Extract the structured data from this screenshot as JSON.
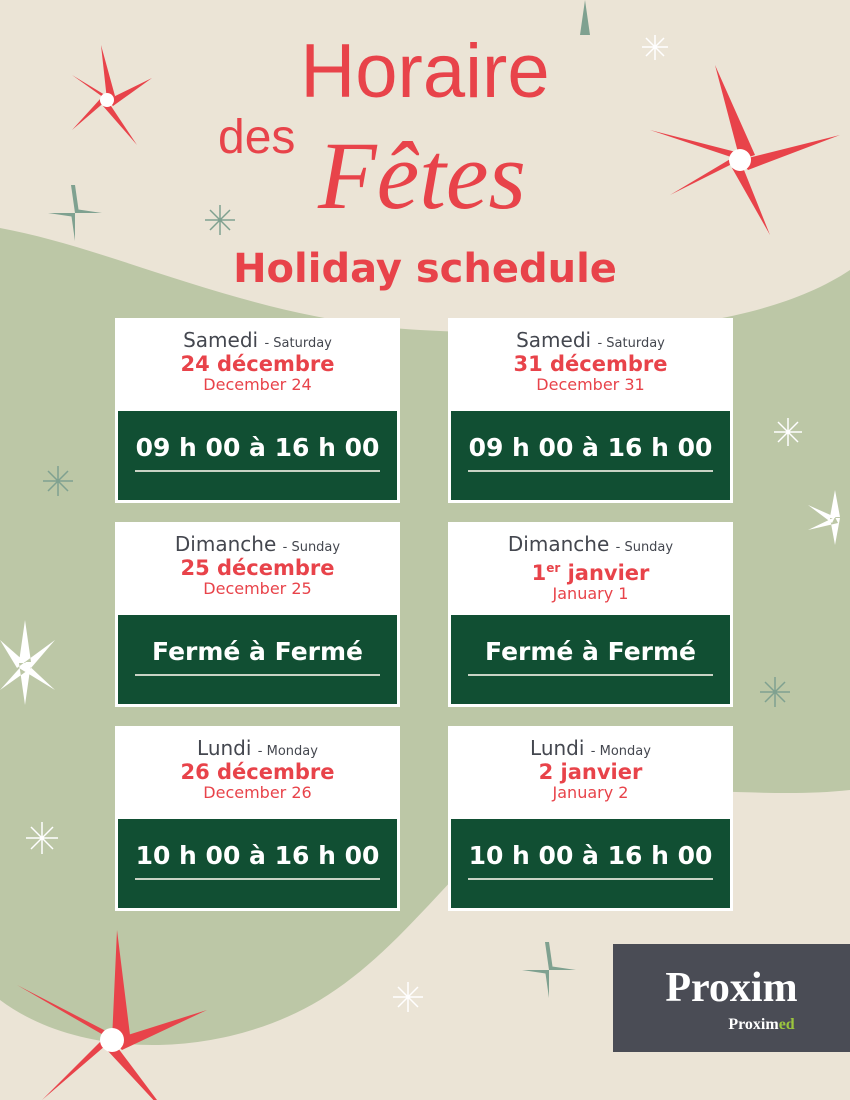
{
  "title": {
    "line1": "Horaire",
    "line2a": "des",
    "line2b": "Fêtes",
    "english": "Holiday schedule"
  },
  "colors": {
    "background": "#ebe4d6",
    "blob": "#bcc7a6",
    "accent_red": "#e8434a",
    "hours_green": "#114f33",
    "logo_bg": "#4a4c55",
    "logo_green": "#9bc53d"
  },
  "cards": [
    {
      "day_fr": "Samedi",
      "day_en": "- Saturday",
      "date_fr": "24 décembre",
      "date_fr_sup": "",
      "date_en": "December 24",
      "hours": "09 h 00 à 16 h 00"
    },
    {
      "day_fr": "Samedi",
      "day_en": "- Saturday",
      "date_fr": "31 décembre",
      "date_fr_sup": "",
      "date_en": "December 31",
      "hours": "09 h 00 à 16 h 00"
    },
    {
      "day_fr": "Dimanche",
      "day_en": "- Sunday",
      "date_fr": "25 décembre",
      "date_fr_sup": "",
      "date_en": "December 25",
      "hours": "Fermé à Fermé"
    },
    {
      "day_fr": "Dimanche",
      "day_en": "- Sunday",
      "date_fr": "1",
      "date_fr_sup": "er",
      "date_fr_rest": " janvier",
      "date_en": "January 1",
      "hours": "Fermé à Fermé"
    },
    {
      "day_fr": "Lundi",
      "day_en": "- Monday",
      "date_fr": "26 décembre",
      "date_fr_sup": "",
      "date_en": "December 26",
      "hours": "10 h 00 à 16 h 00"
    },
    {
      "day_fr": "Lundi",
      "day_en": "- Monday",
      "date_fr": "2 janvier",
      "date_fr_sup": "",
      "date_en": "January 2",
      "hours": "10 h 00 à 16 h 00"
    }
  ],
  "logo": {
    "brand": "Proxim",
    "sub_a": "Pro",
    "sub_b": "xim",
    "sub_c": "ed"
  },
  "decorations": [
    "poinsettia-icon",
    "snowflake-icon",
    "sparkle-icon"
  ]
}
